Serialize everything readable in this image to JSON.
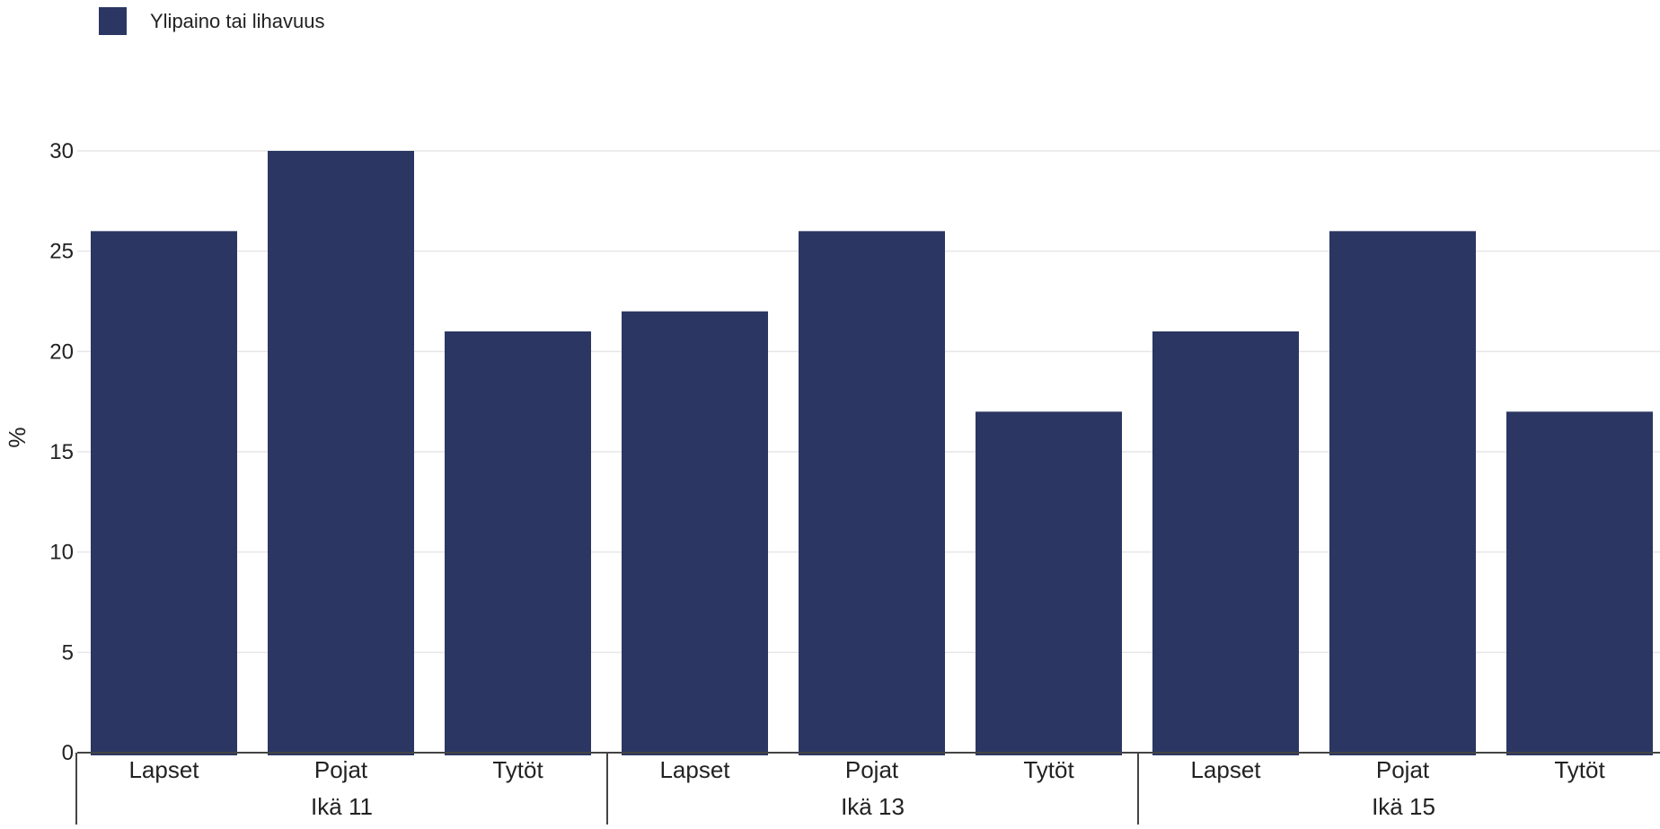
{
  "chart_data": {
    "type": "bar",
    "groups": [
      {
        "label": "Ikä 11",
        "categories": [
          "Lapset",
          "Pojat",
          "Tytöt"
        ],
        "values": [
          26,
          30,
          21
        ]
      },
      {
        "label": "Ikä 13",
        "categories": [
          "Lapset",
          "Pojat",
          "Tytöt"
        ],
        "values": [
          22,
          26,
          17
        ]
      },
      {
        "label": "Ikä 15",
        "categories": [
          "Lapset",
          "Pojat",
          "Tytöt"
        ],
        "values": [
          21,
          26,
          17
        ]
      }
    ],
    "series": [
      {
        "name": "Ylipaino tai lihavuus",
        "color": "#2b3663"
      }
    ],
    "ylabel": "%",
    "ylim": [
      0,
      30
    ],
    "yticks": [
      0,
      5,
      10,
      15,
      20,
      25,
      30
    ],
    "grid": true,
    "legend_position": "top-left"
  }
}
